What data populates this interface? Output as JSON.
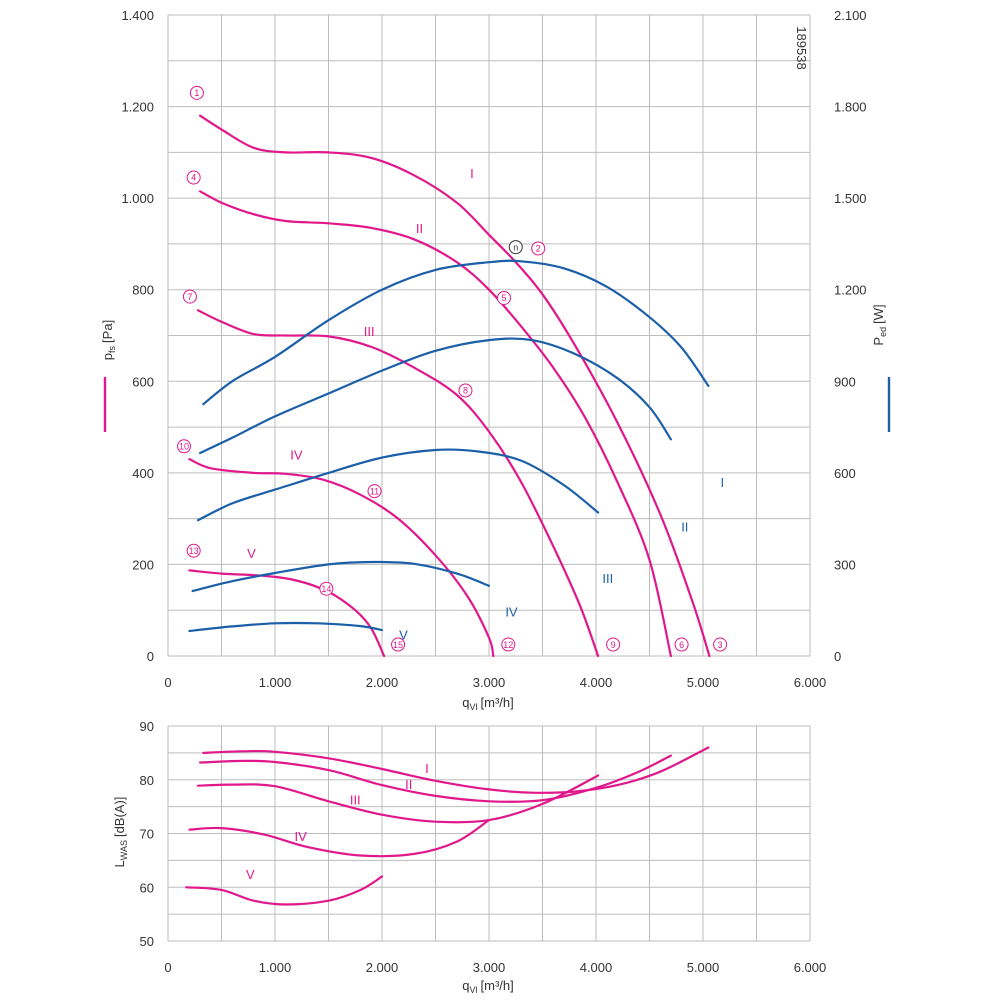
{
  "colors": {
    "pressure": "#e0188c",
    "power": "#1a5fa8",
    "grid": "#bdbdbd",
    "axis_text": "#333333"
  },
  "chart_data": [
    {
      "type": "line",
      "id": "top",
      "figure_code": "189538",
      "xlabel": "q",
      "xlabel_sub": "Vl",
      "xlabel_unit": "[m³/h]",
      "ylabel_left": "p",
      "ylabel_left_sub": "fs",
      "ylabel_left_unit": "[Pa]",
      "ylabel_right": "P",
      "ylabel_right_sub": "ed",
      "ylabel_right_unit": "[W]",
      "xlim": [
        0,
        6000
      ],
      "ylim_left": [
        0,
        1400
      ],
      "ylim_right": [
        0,
        2100
      ],
      "x_ticks": [
        0,
        1000,
        2000,
        3000,
        4000,
        5000,
        6000
      ],
      "x_tick_labels": [
        "0",
        "1.000",
        "2.000",
        "3.000",
        "4.000",
        "5.000",
        "6.000"
      ],
      "y_ticks_left": [
        0,
        200,
        400,
        600,
        800,
        1000,
        1200,
        1400
      ],
      "y_tick_labels_left": [
        "0",
        "200",
        "400",
        "600",
        "800",
        "1.000",
        "1.200",
        "1.400"
      ],
      "y_ticks_right": [
        0,
        300,
        600,
        900,
        1200,
        1500,
        1800,
        2100
      ],
      "y_tick_labels_right": [
        "0",
        "300",
        "600",
        "900",
        "1.200",
        "1.500",
        "1.800",
        "2.100"
      ],
      "grid": true,
      "series": [
        {
          "name": "I",
          "axis": "left",
          "color": "#e0188c",
          "label_at": [
            2840,
            1055
          ],
          "points": [
            [
              300,
              1180
            ],
            [
              500,
              1150
            ],
            [
              800,
              1110
            ],
            [
              1100,
              1100
            ],
            [
              1500,
              1100
            ],
            [
              1900,
              1088
            ],
            [
              2300,
              1050
            ],
            [
              2700,
              990
            ],
            [
              3000,
              920
            ],
            [
              3250,
              860
            ],
            [
              3500,
              790
            ],
            [
              3800,
              680
            ],
            [
              4200,
              510
            ],
            [
              4600,
              310
            ],
            [
              4900,
              120
            ],
            [
              5060,
              0
            ]
          ]
        },
        {
          "name": "II",
          "axis": "left",
          "color": "#e0188c",
          "label_at": [
            2350,
            935
          ],
          "points": [
            [
              300,
              1015
            ],
            [
              500,
              990
            ],
            [
              800,
              965
            ],
            [
              1100,
              950
            ],
            [
              1500,
              945
            ],
            [
              1900,
              935
            ],
            [
              2300,
              910
            ],
            [
              2700,
              860
            ],
            [
              3000,
              800
            ],
            [
              3300,
              720
            ],
            [
              3600,
              630
            ],
            [
              3900,
              520
            ],
            [
              4200,
              380
            ],
            [
              4500,
              210
            ],
            [
              4700,
              0
            ]
          ]
        },
        {
          "name": "III",
          "axis": "left",
          "color": "#e0188c",
          "label_at": [
            1880,
            710
          ],
          "points": [
            [
              280,
              755
            ],
            [
              500,
              730
            ],
            [
              800,
              703
            ],
            [
              1100,
              700
            ],
            [
              1500,
              698
            ],
            [
              1900,
              675
            ],
            [
              2300,
              630
            ],
            [
              2700,
              570
            ],
            [
              3000,
              490
            ],
            [
              3300,
              380
            ],
            [
              3600,
              240
            ],
            [
              3850,
              110
            ],
            [
              4020,
              0
            ]
          ]
        },
        {
          "name": "IV",
          "axis": "left",
          "color": "#e0188c",
          "label_at": [
            1200,
            440
          ],
          "points": [
            [
              200,
              430
            ],
            [
              400,
              410
            ],
            [
              800,
              400
            ],
            [
              1100,
              398
            ],
            [
              1450,
              385
            ],
            [
              1800,
              352
            ],
            [
              2150,
              300
            ],
            [
              2500,
              220
            ],
            [
              2800,
              130
            ],
            [
              3000,
              40
            ],
            [
              3040,
              0
            ]
          ]
        },
        {
          "name": "V",
          "axis": "left",
          "color": "#e0188c",
          "label_at": [
            780,
            225
          ],
          "points": [
            [
              200,
              187
            ],
            [
              500,
              180
            ],
            [
              900,
              175
            ],
            [
              1200,
              165
            ],
            [
              1500,
              140
            ],
            [
              1750,
              100
            ],
            [
              1900,
              60
            ],
            [
              2020,
              0
            ]
          ]
        },
        {
          "name": "I",
          "axis": "right",
          "color": "#1a5fa8",
          "label_at": [
            5180,
            570
          ],
          "points": [
            [
              330,
              825
            ],
            [
              600,
              900
            ],
            [
              1000,
              980
            ],
            [
              1500,
              1100
            ],
            [
              2000,
              1200
            ],
            [
              2500,
              1265
            ],
            [
              3000,
              1290
            ],
            [
              3300,
              1293
            ],
            [
              3700,
              1270
            ],
            [
              4100,
              1210
            ],
            [
              4500,
              1110
            ],
            [
              4800,
              1010
            ],
            [
              5050,
              885
            ]
          ]
        },
        {
          "name": "II",
          "axis": "right",
          "color": "#1a5fa8",
          "label_at": [
            4830,
            425
          ],
          "points": [
            [
              300,
              665
            ],
            [
              600,
              715
            ],
            [
              1000,
              785
            ],
            [
              1500,
              860
            ],
            [
              2000,
              935
            ],
            [
              2500,
              1000
            ],
            [
              3000,
              1035
            ],
            [
              3400,
              1035
            ],
            [
              3800,
              990
            ],
            [
              4200,
              910
            ],
            [
              4500,
              815
            ],
            [
              4700,
              710
            ]
          ]
        },
        {
          "name": "III",
          "axis": "right",
          "color": "#1a5fa8",
          "label_at": [
            4110,
            256
          ],
          "points": [
            [
              280,
              445
            ],
            [
              600,
              500
            ],
            [
              1000,
              545
            ],
            [
              1500,
              600
            ],
            [
              2000,
              650
            ],
            [
              2500,
              675
            ],
            [
              2900,
              670
            ],
            [
              3300,
              640
            ],
            [
              3700,
              560
            ],
            [
              4020,
              470
            ]
          ]
        },
        {
          "name": "IV",
          "axis": "right",
          "color": "#1a5fa8",
          "label_at": [
            3210,
            145
          ],
          "points": [
            [
              230,
              213
            ],
            [
              600,
              245
            ],
            [
              1000,
              272
            ],
            [
              1500,
              300
            ],
            [
              1900,
              308
            ],
            [
              2300,
              302
            ],
            [
              2700,
              270
            ],
            [
              3000,
              230
            ]
          ]
        },
        {
          "name": "V",
          "axis": "right",
          "color": "#1a5fa8",
          "label_at": [
            2200,
            70
          ],
          "points": [
            [
              200,
              82
            ],
            [
              600,
              97
            ],
            [
              1000,
              107
            ],
            [
              1400,
              107
            ],
            [
              1800,
              98
            ],
            [
              2000,
              85
            ]
          ]
        }
      ],
      "markers": [
        {
          "label": "1",
          "x": 270,
          "y": 1230
        },
        {
          "label": "4",
          "x": 240,
          "y": 1045
        },
        {
          "label": "2",
          "x": 3460,
          "y": 890
        },
        {
          "label": "n",
          "x": 3250,
          "y": 893
        },
        {
          "label": "5",
          "x": 3140,
          "y": 782
        },
        {
          "label": "7",
          "x": 205,
          "y": 785
        },
        {
          "label": "8",
          "x": 2780,
          "y": 580
        },
        {
          "label": "10",
          "x": 150,
          "y": 458
        },
        {
          "label": "11",
          "x": 1930,
          "y": 360
        },
        {
          "label": "13",
          "x": 240,
          "y": 230
        },
        {
          "label": "14",
          "x": 1480,
          "y": 147
        },
        {
          "label": "15",
          "x": 2150,
          "y": 25
        },
        {
          "label": "12",
          "x": 3180,
          "y": 25
        },
        {
          "label": "9",
          "x": 4160,
          "y": 25
        },
        {
          "label": "6",
          "x": 4800,
          "y": 25
        },
        {
          "label": "3",
          "x": 5160,
          "y": 25
        }
      ]
    },
    {
      "type": "line",
      "id": "bottom",
      "xlabel": "q",
      "xlabel_sub": "Vl",
      "xlabel_unit": "[m³/h]",
      "ylabel": "L",
      "ylabel_sub": "WAS",
      "ylabel_unit": "[dB(A)]",
      "xlim": [
        0,
        6000
      ],
      "ylim": [
        50,
        90
      ],
      "x_ticks": [
        0,
        1000,
        2000,
        3000,
        4000,
        5000,
        6000
      ],
      "x_tick_labels": [
        "0",
        "1.000",
        "2.000",
        "3.000",
        "4.000",
        "5.000",
        "6.000"
      ],
      "y_ticks": [
        50,
        60,
        70,
        80,
        90
      ],
      "y_tick_labels": [
        "50",
        "60",
        "70",
        "80",
        "90"
      ],
      "grid": true,
      "series": [
        {
          "name": "I",
          "color": "#e0188c",
          "label_at": [
            2420,
            82.2
          ],
          "points": [
            [
              330,
              85
            ],
            [
              700,
              85.3
            ],
            [
              1000,
              85.2
            ],
            [
              1500,
              84
            ],
            [
              2000,
              82
            ],
            [
              2500,
              79.8
            ],
            [
              3000,
              78.2
            ],
            [
              3400,
              77.6
            ],
            [
              3800,
              77.8
            ],
            [
              4200,
              79
            ],
            [
              4600,
              81.5
            ],
            [
              5050,
              86
            ]
          ]
        },
        {
          "name": "II",
          "color": "#e0188c",
          "label_at": [
            2250,
            79.2
          ],
          "points": [
            [
              300,
              83.2
            ],
            [
              700,
              83.5
            ],
            [
              1000,
              83.3
            ],
            [
              1500,
              81.8
            ],
            [
              2000,
              79
            ],
            [
              2500,
              77
            ],
            [
              3000,
              76
            ],
            [
              3500,
              76.2
            ],
            [
              4000,
              78.5
            ],
            [
              4400,
              81.5
            ],
            [
              4700,
              84.5
            ]
          ]
        },
        {
          "name": "III",
          "color": "#e0188c",
          "label_at": [
            1750,
            76.3
          ],
          "points": [
            [
              280,
              78.9
            ],
            [
              600,
              79.1
            ],
            [
              1000,
              78.8
            ],
            [
              1500,
              76
            ],
            [
              2000,
              73.5
            ],
            [
              2500,
              72.2
            ],
            [
              3000,
              72.5
            ],
            [
              3500,
              75.5
            ],
            [
              4020,
              80.8
            ]
          ]
        },
        {
          "name": "IV",
          "color": "#e0188c",
          "label_at": [
            1240,
            69.5
          ],
          "points": [
            [
              200,
              70.7
            ],
            [
              500,
              71
            ],
            [
              900,
              69.8
            ],
            [
              1300,
              67.5
            ],
            [
              1800,
              65.9
            ],
            [
              2300,
              66.2
            ],
            [
              2700,
              68.5
            ],
            [
              3000,
              72.5
            ]
          ]
        },
        {
          "name": "V",
          "color": "#e0188c",
          "label_at": [
            770,
            62.5
          ],
          "points": [
            [
              170,
              60
            ],
            [
              500,
              59.5
            ],
            [
              800,
              57.5
            ],
            [
              1100,
              56.8
            ],
            [
              1500,
              57.5
            ],
            [
              1800,
              59.5
            ],
            [
              2000,
              62
            ]
          ]
        }
      ]
    }
  ]
}
